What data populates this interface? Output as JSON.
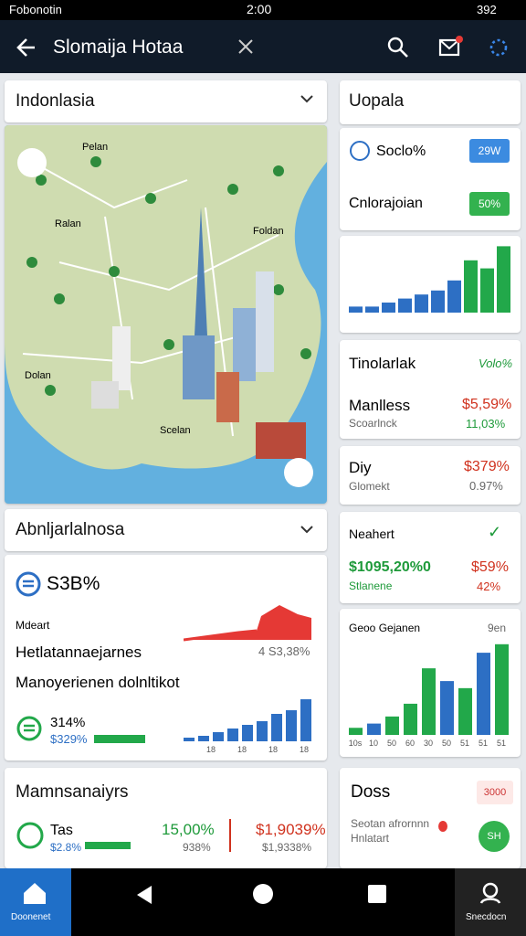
{
  "status_bar": {
    "carrier": "Fobonotin",
    "time": "2:00",
    "battery": "392"
  },
  "app_bar": {
    "title": "Slomaija Hotaa"
  },
  "map_card": {
    "title": "Indonlasia",
    "labels": [
      "Pelan",
      "Ralan",
      "Foldan",
      "Dolan",
      "Scelan"
    ]
  },
  "card_right1": {
    "title": "Uopala",
    "row1_label": "Soclo%",
    "row1_badge": "29W",
    "row2_label": "Cnlorajoian",
    "row2_badge": "50%",
    "bars": [
      3,
      3,
      5,
      7,
      9,
      11,
      16,
      26,
      22,
      33
    ],
    "bar_colors": [
      "#2d6fc4",
      "#2d6fc4",
      "#2d6fc4",
      "#2d6fc4",
      "#2d6fc4",
      "#2d6fc4",
      "#2d6fc4",
      "#22a84a",
      "#22a84a",
      "#22a84a"
    ]
  },
  "card_right2": {
    "title": "Tinolarlak",
    "tag": "Volo%",
    "rows": [
      {
        "label": "Manlless",
        "value": "$5,59%",
        "sub": "Scoarlnck",
        "sub_value": "11,03%"
      },
      {
        "label": "Diy",
        "value": "$379%",
        "sub": "Glomekt",
        "sub_value": "0.97%"
      }
    ]
  },
  "card_right3": {
    "title": "Neahert",
    "check": "✓",
    "value1": "$1095,20%0",
    "value2": "$59%",
    "sub1": "Stlanene",
    "sub2": "42%"
  },
  "card_right4": {
    "title": "Geoo Gejanen",
    "tag": "9en",
    "categories": [
      "10s",
      "10",
      "50",
      "60",
      "30",
      "50",
      "51",
      "51",
      "51"
    ],
    "bars": [
      5,
      8,
      13,
      22,
      47,
      38,
      33,
      58,
      64
    ],
    "bar_colors": [
      "#22a84a",
      "#2d6fc4",
      "#22a84a",
      "#22a84a",
      "#22a84a",
      "#2d6fc4",
      "#22a84a",
      "#2d6fc4",
      "#22a84a"
    ]
  },
  "card_left2": {
    "title": "Abnljarlalnosa",
    "stat": "S3B%",
    "label1": "Mdeart",
    "label2": "Hetlatannaejarnes",
    "value2": "4  S3,38%",
    "label3": "Manoyerienen dolnltikot",
    "stat2": "314%",
    "stat2_sub": "$329%",
    "bars": [
      2,
      3,
      5,
      7,
      9,
      11,
      15,
      17,
      23
    ],
    "bar_labels": [
      "18",
      "18",
      "18",
      "18"
    ]
  },
  "card_left3": {
    "title": "Mamnsanaiyrs",
    "item": "Tas",
    "item_sub": "$2.8%",
    "value1": "15,00%",
    "value1_sub": "938%",
    "value2": "$1,9039%",
    "value2_sub": "$1,9338%"
  },
  "card_right5": {
    "title": "Doss",
    "badge": "3000",
    "line1": "Seotan afrornnn",
    "line2": "Hnlatart",
    "avatar": "SH"
  },
  "nav": {
    "left": "Doonenet",
    "right": "Snecdocn"
  }
}
